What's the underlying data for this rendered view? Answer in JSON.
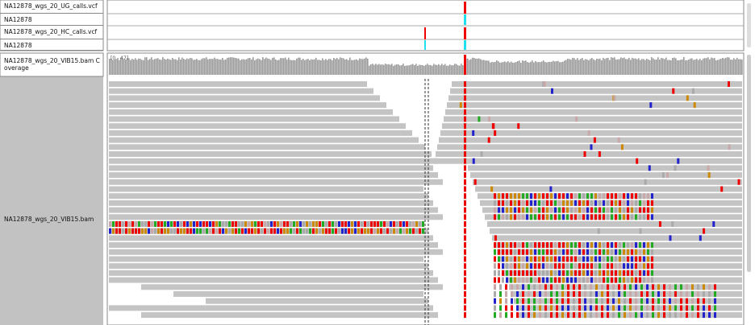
{
  "tracks": {
    "ug_vcf": "NA12878_wgs_20_UG_calls.vcf",
    "ug_sample": "NA12878",
    "hc_vcf": "NA12878_wgs_20_HC_calls.vcf",
    "hc_sample": "NA12878",
    "coverage": "NA12878_wgs_20_VIB15.bam Coverage",
    "coverage_range": "[0 - 47]",
    "alignments": "NA12878_wgs_20_VIB15.bam"
  }
}
